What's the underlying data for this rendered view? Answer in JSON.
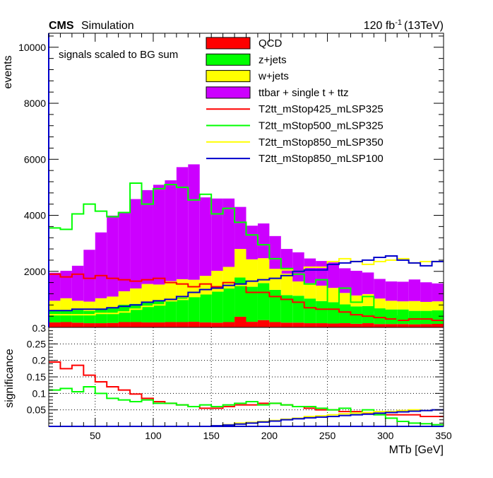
{
  "header": {
    "cms": "CMS",
    "simulation": "Simulation",
    "lumi": "120 fb",
    "lumi_exp": "-1",
    "energy": "(13TeV)"
  },
  "note": "signals scaled to BG sum",
  "chart_data": [
    {
      "type": "stacked-histogram",
      "ylabel": "events",
      "xlim": [
        10,
        350
      ],
      "ylim": [
        0,
        10500
      ],
      "yticks": [
        2000,
        4000,
        6000,
        8000,
        10000
      ],
      "bin_edges": [
        10,
        20,
        30,
        40,
        50,
        60,
        70,
        80,
        90,
        100,
        110,
        120,
        130,
        140,
        150,
        160,
        170,
        180,
        190,
        200,
        210,
        220,
        230,
        240,
        250,
        260,
        270,
        280,
        290,
        300,
        310,
        320,
        330,
        340,
        350
      ],
      "stack": [
        {
          "name": "QCD",
          "color": "#ff0000",
          "values": [
            180,
            190,
            170,
            150,
            150,
            160,
            190,
            190,
            180,
            180,
            190,
            190,
            200,
            180,
            170,
            190,
            380,
            200,
            260,
            190,
            170,
            170,
            150,
            150,
            140,
            150,
            130,
            150,
            120,
            120,
            120,
            110,
            120,
            130
          ]
        },
        {
          "name": "z+jets",
          "color": "#00ff00",
          "values": [
            420,
            430,
            450,
            440,
            490,
            540,
            620,
            650,
            720,
            790,
            810,
            870,
            920,
            1000,
            1150,
            1200,
            1400,
            1250,
            1320,
            1150,
            980,
            960,
            880,
            790,
            760,
            670,
            620,
            610,
            560,
            520,
            520,
            480,
            470,
            480
          ]
        },
        {
          "name": "w+jets",
          "color": "#ffff00",
          "values": [
            350,
            420,
            330,
            330,
            400,
            400,
            480,
            550,
            650,
            560,
            650,
            660,
            580,
            660,
            700,
            770,
            1020,
            980,
            890,
            750,
            770,
            510,
            550,
            550,
            510,
            410,
            390,
            430,
            350,
            310,
            290,
            350,
            320,
            320
          ]
        },
        {
          "name": "ttbar + single t + ttz",
          "color": "#cc00ff",
          "values": [
            1000,
            980,
            1250,
            1850,
            2350,
            2890,
            2820,
            3190,
            3350,
            3560,
            3600,
            4000,
            4120,
            2800,
            2580,
            2440,
            1500,
            1200,
            1240,
            1170,
            880,
            1040,
            880,
            880,
            910,
            880,
            880,
            770,
            700,
            690,
            700,
            770,
            700,
            640
          ]
        }
      ],
      "signals": [
        {
          "name": "T2tt_mStop425_mLSP325",
          "color": "#ff0000",
          "values": [
            1900,
            1800,
            1900,
            1750,
            1850,
            1750,
            1700,
            1650,
            1700,
            1750,
            1600,
            1550,
            1450,
            1550,
            1450,
            1600,
            1500,
            1250,
            1250,
            1100,
            1000,
            900,
            700,
            650,
            650,
            550,
            450,
            400,
            350,
            300,
            250,
            300,
            300,
            250
          ]
        },
        {
          "name": "T2tt_mStop500_mLSP325",
          "color": "#00ff00",
          "values": [
            3550,
            3500,
            4050,
            4400,
            4150,
            3950,
            4100,
            5150,
            4400,
            4950,
            5100,
            5000,
            4550,
            4750,
            4050,
            4250,
            3750,
            3300,
            2950,
            2450,
            2100,
            1900,
            1550,
            1700,
            750,
            1400,
            900,
            1100,
            600,
            400,
            200,
            200,
            150,
            150
          ]
        },
        {
          "name": "T2tt_mStop850_mLSP350",
          "color": "#ffff00",
          "values": [
            450,
            450,
            450,
            450,
            500,
            500,
            550,
            650,
            750,
            800,
            950,
            1000,
            1100,
            1200,
            1300,
            1500,
            1500,
            1800,
            2000,
            1950,
            2050,
            2000,
            2150,
            2150,
            2350,
            2450,
            2350,
            2250,
            2350,
            2400,
            2450,
            2300,
            2350,
            2350
          ]
        },
        {
          "name": "T2tt_mStop850_mLSP100",
          "color": "#0000cc",
          "values": [
            600,
            600,
            650,
            650,
            650,
            700,
            750,
            800,
            900,
            950,
            1000,
            1100,
            1250,
            1350,
            1400,
            1500,
            1550,
            1650,
            1700,
            1750,
            1850,
            2000,
            2050,
            2050,
            2250,
            2300,
            2350,
            2400,
            2500,
            2550,
            2400,
            2300,
            2200,
            2350
          ]
        }
      ]
    },
    {
      "type": "line-histogram",
      "ylabel": "significance",
      "xlabel": "MTb [GeV]",
      "xlim": [
        10,
        350
      ],
      "ylim": [
        0,
        0.3
      ],
      "yticks": [
        0.05,
        0.1,
        0.15,
        0.2,
        0.25
      ],
      "ytick_labels": [
        "0.05",
        "0.1",
        "0.15",
        "0.2",
        "0.25"
      ],
      "ytick_top_label": "0.3",
      "xticks": [
        50,
        100,
        150,
        200,
        250,
        300,
        350
      ],
      "bin_edges": [
        10,
        20,
        30,
        40,
        50,
        60,
        70,
        80,
        90,
        100,
        110,
        120,
        130,
        140,
        150,
        160,
        170,
        180,
        190,
        200,
        210,
        220,
        230,
        240,
        250,
        260,
        270,
        280,
        290,
        300,
        310,
        320,
        330,
        340,
        350
      ],
      "series": [
        {
          "name": "T2tt_mStop425_mLSP325",
          "color": "#ff0000",
          "values": [
            0.195,
            0.175,
            0.185,
            0.155,
            0.135,
            0.12,
            0.11,
            0.098,
            0.085,
            0.075,
            0.07,
            0.065,
            0.06,
            0.055,
            0.055,
            0.06,
            0.065,
            0.065,
            0.07,
            0.07,
            0.065,
            0.06,
            0.055,
            0.05,
            0.05,
            0.045,
            0.045,
            0.04,
            0.04,
            0.035,
            0.035,
            0.035,
            0.03,
            0.03
          ]
        },
        {
          "name": "T2tt_mStop500_mLSP325",
          "color": "#00ff00",
          "values": [
            0.11,
            0.115,
            0.105,
            0.12,
            0.1,
            0.085,
            0.08,
            0.075,
            0.08,
            0.07,
            0.07,
            0.065,
            0.06,
            0.065,
            0.06,
            0.065,
            0.07,
            0.075,
            0.065,
            0.07,
            0.065,
            0.06,
            0.06,
            0.055,
            0.05,
            0.055,
            0.04,
            0.05,
            0.035,
            0.025,
            0.015,
            0.01,
            0.008,
            0.005
          ]
        },
        {
          "name": "T2tt_mStop850_mLSP350",
          "color": "#ffff00",
          "values": [
            0,
            0,
            0,
            0,
            0,
            0,
            0,
            0,
            0,
            0,
            0,
            0,
            0,
            0,
            0.002,
            0.005,
            0.01,
            0.012,
            0.015,
            0.018,
            0.022,
            0.025,
            0.03,
            0.032,
            0.035,
            0.038,
            0.04,
            0.042,
            0.045,
            0.045,
            0.048,
            0.05,
            0.048,
            0.05
          ]
        },
        {
          "name": "T2tt_mStop850_mLSP100",
          "color": "#0000cc",
          "values": [
            0,
            0,
            0,
            0,
            0,
            0,
            0,
            0,
            0,
            0,
            0,
            0,
            0,
            0,
            0.002,
            0.004,
            0.007,
            0.01,
            0.013,
            0.016,
            0.02,
            0.023,
            0.026,
            0.028,
            0.03,
            0.033,
            0.035,
            0.037,
            0.04,
            0.042,
            0.044,
            0.046,
            0.048,
            0.05
          ]
        }
      ]
    }
  ]
}
